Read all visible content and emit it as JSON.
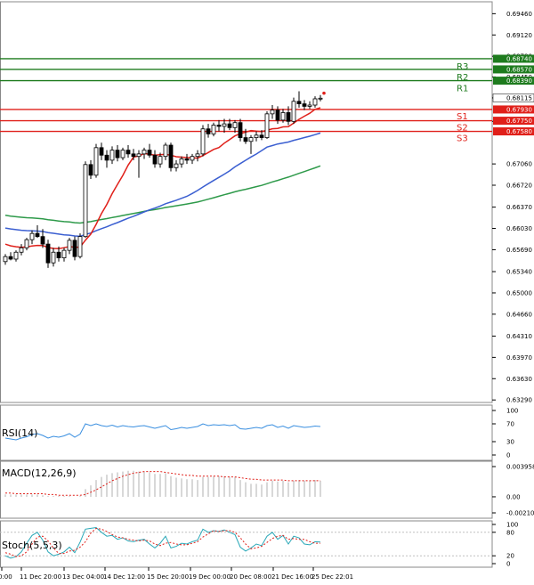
{
  "chart_data": {
    "type": "candlestick",
    "main": {
      "y_ticks": [
        "0.69460",
        "0.69120",
        "0.68780",
        "0.68450",
        "0.68115",
        "0.67740",
        "0.67060",
        "0.66720",
        "0.66370",
        "0.66030",
        "0.65690",
        "0.65340",
        "0.65000",
        "0.64660",
        "0.64310",
        "0.63970",
        "0.63630",
        "0.63290"
      ],
      "ylim": [
        0.6325,
        0.6965
      ],
      "current_price": "0.68115",
      "x_labels": [
        "0:00",
        "11 Dec 20:00",
        "13 Dec 04:00",
        "14 Dec 12:00",
        "15 Dec 20:00",
        "19 Dec 00:00",
        "20 Dec 08:00",
        "21 Dec 16:00",
        "25 Dec 22:01"
      ],
      "levels": [
        {
          "name": "R3",
          "value": "0.68740",
          "color": "#1e7b1e"
        },
        {
          "name": "R2",
          "value": "0.68570",
          "color": "#1e7b1e"
        },
        {
          "name": "R1",
          "value": "0.68390",
          "color": "#1e7b1e"
        },
        {
          "name": "S1",
          "value": "0.67930",
          "color": "#e0201a"
        },
        {
          "name": "S2",
          "value": "0.67750",
          "color": "#e0201a"
        },
        {
          "name": "S3",
          "value": "0.67580",
          "color": "#e0201a"
        }
      ],
      "candles": [
        [
          0.655,
          0.6562,
          0.6545,
          0.6558
        ],
        [
          0.6558,
          0.6565,
          0.6552,
          0.6554
        ],
        [
          0.6554,
          0.6568,
          0.655,
          0.6565
        ],
        [
          0.6565,
          0.6578,
          0.656,
          0.6572
        ],
        [
          0.6572,
          0.6588,
          0.6568,
          0.6585
        ],
        [
          0.6585,
          0.66,
          0.6578,
          0.6595
        ],
        [
          0.6595,
          0.6608,
          0.6588,
          0.659
        ],
        [
          0.659,
          0.6602,
          0.6572,
          0.6578
        ],
        [
          0.6578,
          0.6585,
          0.654,
          0.6548
        ],
        [
          0.6548,
          0.6572,
          0.6542,
          0.6565
        ],
        [
          0.6565,
          0.6574,
          0.655,
          0.6556
        ],
        [
          0.6556,
          0.6572,
          0.655,
          0.6568
        ],
        [
          0.6568,
          0.6588,
          0.6562,
          0.6584
        ],
        [
          0.6584,
          0.659,
          0.6552,
          0.6558
        ],
        [
          0.6558,
          0.6595,
          0.6555,
          0.659
        ],
        [
          0.659,
          0.671,
          0.6588,
          0.6705
        ],
        [
          0.6705,
          0.6712,
          0.6682,
          0.6688
        ],
        [
          0.6688,
          0.6738,
          0.6684,
          0.6732
        ],
        [
          0.6732,
          0.674,
          0.6712,
          0.672
        ],
        [
          0.672,
          0.6728,
          0.67,
          0.6712
        ],
        [
          0.6712,
          0.6734,
          0.6706,
          0.6728
        ],
        [
          0.6728,
          0.6736,
          0.671,
          0.6716
        ],
        [
          0.6716,
          0.6732,
          0.6712,
          0.6728
        ],
        [
          0.6728,
          0.6736,
          0.6716,
          0.6722
        ],
        [
          0.6722,
          0.673,
          0.6712,
          0.6718
        ],
        [
          0.6718,
          0.6728,
          0.6684,
          0.6722
        ],
        [
          0.6722,
          0.6732,
          0.6714,
          0.6728
        ],
        [
          0.6728,
          0.6738,
          0.6716,
          0.672
        ],
        [
          0.672,
          0.6728,
          0.67,
          0.6706
        ],
        [
          0.6706,
          0.6724,
          0.67,
          0.6718
        ],
        [
          0.6718,
          0.674,
          0.6712,
          0.6736
        ],
        [
          0.6736,
          0.674,
          0.6694,
          0.67
        ],
        [
          0.67,
          0.6712,
          0.6694,
          0.6706
        ],
        [
          0.6706,
          0.6718,
          0.67,
          0.6714
        ],
        [
          0.6714,
          0.6722,
          0.6706,
          0.6712
        ],
        [
          0.6712,
          0.6722,
          0.6706,
          0.6718
        ],
        [
          0.6718,
          0.6728,
          0.671,
          0.6722
        ],
        [
          0.6722,
          0.6768,
          0.6718,
          0.6762
        ],
        [
          0.6762,
          0.677,
          0.6748,
          0.6754
        ],
        [
          0.6754,
          0.6772,
          0.675,
          0.6768
        ],
        [
          0.6768,
          0.6776,
          0.6758,
          0.6766
        ],
        [
          0.6766,
          0.6778,
          0.6756,
          0.677
        ],
        [
          0.677,
          0.6778,
          0.676,
          0.6764
        ],
        [
          0.6764,
          0.6776,
          0.6756,
          0.6772
        ],
        [
          0.6772,
          0.6778,
          0.6742,
          0.6748
        ],
        [
          0.6748,
          0.6762,
          0.6738,
          0.6742
        ],
        [
          0.6742,
          0.6752,
          0.6722,
          0.6748
        ],
        [
          0.6748,
          0.6758,
          0.6742,
          0.6752
        ],
        [
          0.6752,
          0.676,
          0.6744,
          0.6748
        ],
        [
          0.6748,
          0.679,
          0.6746,
          0.6786
        ],
        [
          0.6786,
          0.68,
          0.6778,
          0.6792
        ],
        [
          0.6792,
          0.6798,
          0.677,
          0.6776
        ],
        [
          0.6776,
          0.6794,
          0.6772,
          0.6788
        ],
        [
          0.6788,
          0.6798,
          0.6768,
          0.6774
        ],
        [
          0.6774,
          0.6812,
          0.677,
          0.6806
        ],
        [
          0.6806,
          0.6822,
          0.6796,
          0.6802
        ],
        [
          0.6802,
          0.6808,
          0.6792,
          0.6798
        ],
        [
          0.6798,
          0.6806,
          0.6794,
          0.68
        ],
        [
          0.68,
          0.6814,
          0.6796,
          0.681
        ],
        [
          0.681,
          0.6816,
          0.6806,
          0.6811
        ]
      ]
    },
    "rsi": {
      "label": "RSI(14)",
      "ticks": [
        "100",
        "70",
        "30",
        "0"
      ],
      "ylim": [
        0,
        100
      ],
      "values": [
        38,
        36,
        34,
        38,
        41,
        46,
        48,
        44,
        38,
        42,
        40,
        43,
        48,
        40,
        47,
        70,
        66,
        70,
        66,
        64,
        67,
        63,
        66,
        64,
        63,
        65,
        66,
        63,
        60,
        63,
        66,
        57,
        59,
        62,
        60,
        62,
        64,
        70,
        66,
        68,
        67,
        68,
        66,
        68,
        59,
        58,
        60,
        62,
        60,
        66,
        68,
        62,
        65,
        60,
        66,
        64,
        62,
        63,
        65,
        64
      ]
    },
    "macd": {
      "label": "MACD(12,26,9)",
      "ticks": [
        "0.003958",
        "0.00",
        "-0.002104"
      ],
      "ylim": [
        -0.002104,
        0.003958
      ],
      "hist": [
        0.0003,
        0.0003,
        0.0003,
        0.0003,
        0.0003,
        0.0003,
        0.0003,
        0.0002,
        0.0001,
        0.0001,
        0.0001,
        0.0001,
        0.0001,
        0.0,
        0.0001,
        0.001,
        0.0015,
        0.0022,
        0.0026,
        0.0029,
        0.0031,
        0.0032,
        0.0033,
        0.0034,
        0.0034,
        0.0033,
        0.0033,
        0.0032,
        0.003,
        0.003,
        0.0031,
        0.0027,
        0.0025,
        0.0024,
        0.0023,
        0.0023,
        0.0022,
        0.0026,
        0.0026,
        0.0027,
        0.0027,
        0.0027,
        0.0026,
        0.0026,
        0.0022,
        0.0019,
        0.0017,
        0.0017,
        0.0016,
        0.0019,
        0.0021,
        0.002,
        0.0021,
        0.0019,
        0.0021,
        0.0022,
        0.0021,
        0.0021,
        0.0022,
        0.0021
      ],
      "signal": [
        0.0005,
        0.0005,
        0.0004,
        0.0004,
        0.0004,
        0.0004,
        0.0004,
        0.0004,
        0.0003,
        0.0003,
        0.0002,
        0.0002,
        0.0002,
        0.0002,
        0.0002,
        0.0003,
        0.0006,
        0.0009,
        0.0013,
        0.0017,
        0.0021,
        0.0024,
        0.0027,
        0.0029,
        0.0031,
        0.0032,
        0.0033,
        0.0033,
        0.0033,
        0.0033,
        0.0032,
        0.0031,
        0.003,
        0.0029,
        0.0028,
        0.0028,
        0.0027,
        0.0027,
        0.0027,
        0.0027,
        0.0027,
        0.0026,
        0.0026,
        0.0026,
        0.0025,
        0.0024,
        0.0023,
        0.0023,
        0.0022,
        0.0022,
        0.0022,
        0.0022,
        0.0022,
        0.0021,
        0.0021,
        0.0021,
        0.0021,
        0.0021,
        0.0021,
        0.0021
      ]
    },
    "stoch": {
      "label": "Stoch(5,5,3)",
      "ticks": [
        "100",
        "80",
        "20",
        "0"
      ],
      "ylim": [
        0,
        100
      ],
      "k": [
        20,
        14,
        18,
        30,
        52,
        72,
        80,
        60,
        30,
        20,
        24,
        30,
        42,
        28,
        55,
        88,
        90,
        92,
        80,
        70,
        72,
        62,
        66,
        58,
        56,
        60,
        62,
        50,
        40,
        52,
        70,
        40,
        44,
        52,
        50,
        56,
        60,
        88,
        80,
        84,
        82,
        86,
        80,
        74,
        42,
        32,
        40,
        50,
        46,
        70,
        80,
        62,
        72,
        50,
        70,
        66,
        50,
        48,
        56,
        55
      ],
      "d": [
        28,
        24,
        18,
        20,
        30,
        50,
        68,
        70,
        58,
        40,
        26,
        26,
        32,
        34,
        42,
        56,
        78,
        90,
        88,
        82,
        74,
        68,
        66,
        62,
        60,
        58,
        60,
        58,
        50,
        46,
        52,
        54,
        50,
        48,
        48,
        52,
        56,
        68,
        76,
        84,
        82,
        84,
        84,
        80,
        66,
        50,
        38,
        40,
        44,
        54,
        64,
        70,
        72,
        62,
        64,
        62,
        62,
        56,
        52,
        52
      ]
    }
  }
}
